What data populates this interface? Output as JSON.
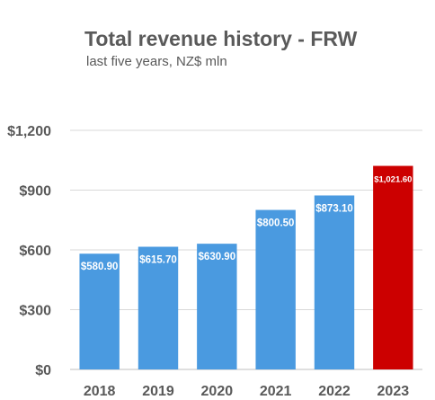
{
  "chart_data": {
    "type": "bar",
    "title": "Total revenue history - FRW",
    "subtitle": "last five years, NZ$ mln",
    "categories": [
      "2018",
      "2019",
      "2020",
      "2021",
      "2022",
      "2023"
    ],
    "values": [
      580.9,
      615.7,
      630.9,
      800.5,
      873.1,
      1021.6
    ],
    "value_labels": [
      "$580.90",
      "$615.70",
      "$630.90",
      "$800.50",
      "$873.10",
      "$1,021.60"
    ],
    "y_ticks": [
      0,
      300,
      600,
      900,
      1200
    ],
    "y_tick_labels": [
      "$0",
      "$300",
      "$600",
      "$900",
      "$1,200"
    ],
    "ylim": [
      0,
      1200
    ],
    "grid": true,
    "colors": {
      "bar": "#4a9ae0",
      "highlight": "#cc0000",
      "grid": "#d9d9d9",
      "axis": "#bfbfbf"
    },
    "highlight_index": 5
  }
}
